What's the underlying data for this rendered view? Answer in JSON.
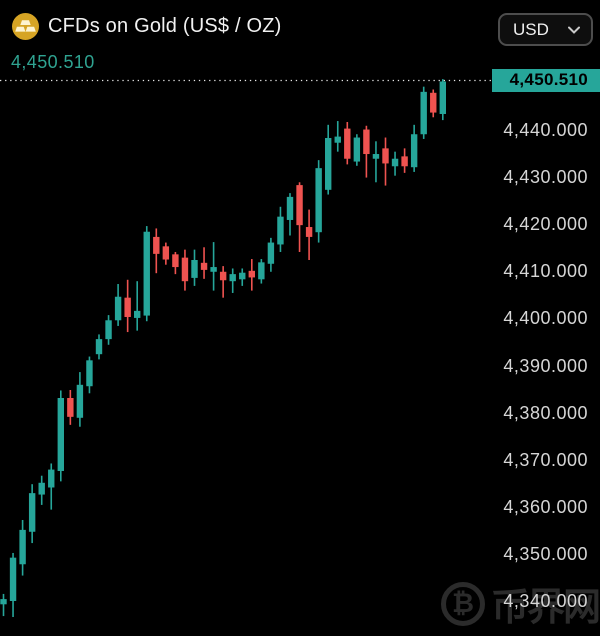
{
  "header": {
    "title": "CFDs on Gold (US$ / OZ)",
    "instrument_icon": "gold-bars-icon",
    "currency_selector": {
      "value": "USD",
      "icon": "chevron-down-icon"
    }
  },
  "price_display": {
    "value": "4,450.510"
  },
  "price_scale": {
    "current_badge": "4,450.510",
    "ticks": [
      {
        "label": "4,440.000",
        "value": 4440
      },
      {
        "label": "4,430.000",
        "value": 4430
      },
      {
        "label": "4,420.000",
        "value": 4420
      },
      {
        "label": "4,410.000",
        "value": 4410
      },
      {
        "label": "4,400.000",
        "value": 4400
      },
      {
        "label": "4,390.000",
        "value": 4390
      },
      {
        "label": "4,380.000",
        "value": 4380
      },
      {
        "label": "4,370.000",
        "value": 4370
      },
      {
        "label": "4,360.000",
        "value": 4360
      },
      {
        "label": "4,350.000",
        "value": 4350
      },
      {
        "label": "4,340.000",
        "value": 4340
      }
    ]
  },
  "watermark": {
    "icon": "bitcoin-icon",
    "text": "币界网"
  },
  "colors": {
    "background": "#000000",
    "up": "#26a69a",
    "down": "#ef5350",
    "badge_bg": "#26a69a",
    "badge_text": "#000000",
    "accent_text": "#2fa391",
    "scale_text": "#d6d6d6",
    "dotted_line": "#e6e6e6",
    "gold_icon": "#d6a424"
  },
  "chart_data": {
    "type": "candlestick",
    "title": "CFDs on Gold (US$ / OZ)",
    "last_price": 4450.51,
    "ylim": [
      4333,
      4455
    ],
    "grid": false,
    "legend": false,
    "y_axis_side": "right",
    "candles": [
      {
        "o": 4339.3,
        "h": 4341.5,
        "l": 4336.8,
        "c": 4340.4
      },
      {
        "o": 4340.0,
        "h": 4350.2,
        "l": 4336.6,
        "c": 4349.2
      },
      {
        "o": 4347.8,
        "h": 4357.2,
        "l": 4345.4,
        "c": 4355.1
      },
      {
        "o": 4354.7,
        "h": 4364.8,
        "l": 4352.3,
        "c": 4362.9
      },
      {
        "o": 4362.6,
        "h": 4366.6,
        "l": 4360.4,
        "c": 4365.1
      },
      {
        "o": 4364.1,
        "h": 4369.2,
        "l": 4359.4,
        "c": 4367.9
      },
      {
        "o": 4367.6,
        "h": 4384.7,
        "l": 4365.4,
        "c": 4383.1
      },
      {
        "o": 4383.1,
        "h": 4384.8,
        "l": 4377.4,
        "c": 4379.1
      },
      {
        "o": 4378.9,
        "h": 4388.6,
        "l": 4377.0,
        "c": 4385.9
      },
      {
        "o": 4385.6,
        "h": 4391.9,
        "l": 4384.1,
        "c": 4391.1
      },
      {
        "o": 4392.4,
        "h": 4396.6,
        "l": 4391.3,
        "c": 4395.6
      },
      {
        "o": 4395.6,
        "h": 4400.7,
        "l": 4394.4,
        "c": 4399.6
      },
      {
        "o": 4399.6,
        "h": 4407.3,
        "l": 4398.4,
        "c": 4404.6
      },
      {
        "o": 4404.4,
        "h": 4408.2,
        "l": 4397.1,
        "c": 4400.3
      },
      {
        "o": 4400.1,
        "h": 4407.9,
        "l": 4397.4,
        "c": 4401.6
      },
      {
        "o": 4400.6,
        "h": 4419.6,
        "l": 4399.4,
        "c": 4418.4
      },
      {
        "o": 4417.3,
        "h": 4419.1,
        "l": 4409.6,
        "c": 4413.7
      },
      {
        "o": 4415.3,
        "h": 4416.1,
        "l": 4411.4,
        "c": 4412.5
      },
      {
        "o": 4413.6,
        "h": 4414.1,
        "l": 4409.4,
        "c": 4410.9
      },
      {
        "o": 4412.9,
        "h": 4414.6,
        "l": 4405.9,
        "c": 4407.9
      },
      {
        "o": 4408.6,
        "h": 4414.6,
        "l": 4406.9,
        "c": 4412.4
      },
      {
        "o": 4411.8,
        "h": 4415.1,
        "l": 4408.4,
        "c": 4410.3
      },
      {
        "o": 4409.9,
        "h": 4416.2,
        "l": 4405.9,
        "c": 4410.9
      },
      {
        "o": 4409.9,
        "h": 4411.1,
        "l": 4404.4,
        "c": 4408.1
      },
      {
        "o": 4407.9,
        "h": 4410.6,
        "l": 4405.4,
        "c": 4409.4
      },
      {
        "o": 4408.3,
        "h": 4410.6,
        "l": 4406.9,
        "c": 4409.7
      },
      {
        "o": 4410.1,
        "h": 4412.6,
        "l": 4405.9,
        "c": 4408.7
      },
      {
        "o": 4408.3,
        "h": 4412.6,
        "l": 4407.4,
        "c": 4411.9
      },
      {
        "o": 4411.6,
        "h": 4417.1,
        "l": 4409.9,
        "c": 4416.1
      },
      {
        "o": 4415.7,
        "h": 4423.7,
        "l": 4414.1,
        "c": 4421.6
      },
      {
        "o": 4420.9,
        "h": 4426.6,
        "l": 4417.6,
        "c": 4425.8
      },
      {
        "o": 4428.3,
        "h": 4428.9,
        "l": 4414.1,
        "c": 4419.8
      },
      {
        "o": 4419.4,
        "h": 4423.1,
        "l": 4412.4,
        "c": 4417.3
      },
      {
        "o": 4418.3,
        "h": 4433.6,
        "l": 4416.1,
        "c": 4431.9
      },
      {
        "o": 4427.3,
        "h": 4441.1,
        "l": 4426.3,
        "c": 4438.3
      },
      {
        "o": 4437.3,
        "h": 4441.9,
        "l": 4435.4,
        "c": 4438.6
      },
      {
        "o": 4440.3,
        "h": 4441.7,
        "l": 4432.7,
        "c": 4433.9
      },
      {
        "o": 4433.3,
        "h": 4439.1,
        "l": 4432.4,
        "c": 4438.4
      },
      {
        "o": 4440.1,
        "h": 4440.9,
        "l": 4429.9,
        "c": 4434.9
      },
      {
        "o": 4433.9,
        "h": 4437.6,
        "l": 4428.9,
        "c": 4434.9
      },
      {
        "o": 4436.1,
        "h": 4438.4,
        "l": 4428.2,
        "c": 4432.9
      },
      {
        "o": 4432.3,
        "h": 4435.4,
        "l": 4430.3,
        "c": 4433.9
      },
      {
        "o": 4434.4,
        "h": 4436.1,
        "l": 4430.9,
        "c": 4432.3
      },
      {
        "o": 4432.1,
        "h": 4441.1,
        "l": 4431.1,
        "c": 4439.1
      },
      {
        "o": 4439.1,
        "h": 4449.2,
        "l": 4438.1,
        "c": 4448.1
      },
      {
        "o": 4447.9,
        "h": 4448.6,
        "l": 4442.7,
        "c": 4443.7
      },
      {
        "o": 4443.4,
        "h": 4450.8,
        "l": 4442.1,
        "c": 4450.3
      }
    ]
  }
}
